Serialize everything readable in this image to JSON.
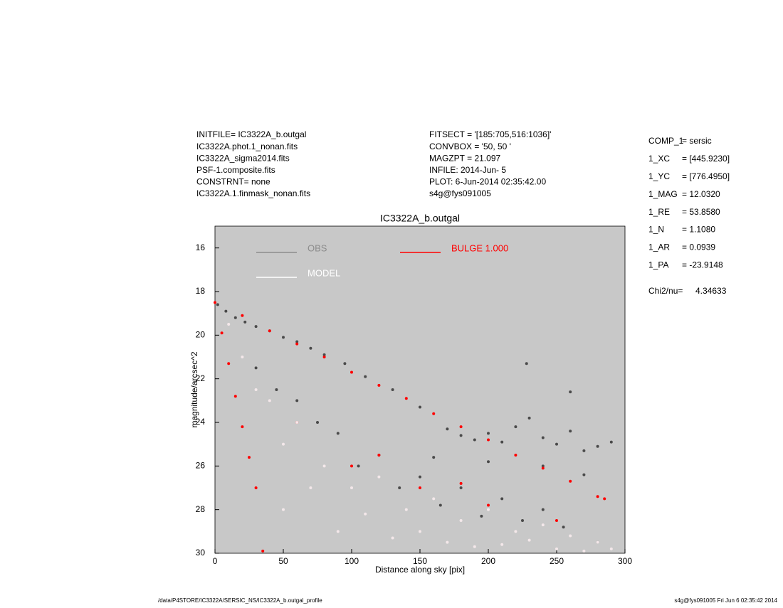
{
  "header": {
    "left": [
      "INITFILE= IC3322A_b.outgal",
      "IC3322A.phot.1_nonan.fits",
      "IC3322A_sigma2014.fits",
      "PSF-1.composite.fits",
      "CONSTRNT= none",
      "IC3322A.1.finmask_nonan.fits"
    ],
    "middle": [
      "FITSECT = '[185:705,516:1036]'",
      "CONVBOX = '50, 50  '",
      "MAGZPT  =              21.097",
      "INFILE: 2014-Jun- 5",
      "PLOT:  6-Jun-2014 02:35:42.00",
      "s4g@fys091005"
    ],
    "params": [
      [
        "COMP_1",
        "= sersic"
      ],
      [
        "1_XC",
        "= [445.9230]"
      ],
      [
        "1_YC",
        "= [776.4950]"
      ],
      [
        "1_MAG",
        "= 12.0320"
      ],
      [
        "1_RE",
        "= 53.8580"
      ],
      [
        "1_N",
        "= 1.1080"
      ],
      [
        "1_AR",
        "= 0.0939"
      ],
      [
        "1_PA",
        "= -23.9148"
      ]
    ],
    "chi2": [
      "Chi2/nu=",
      "4.34633"
    ]
  },
  "footer": {
    "left": "/data/P4STORE/IC3322A/SERSIC_NS/IC3322A_b.outgal_profile",
    "right": "s4g@fys091005  Fri Jun  6 02:35:42 2014"
  },
  "chart_data": {
    "type": "scatter",
    "title": "IC3322A_b.outgal",
    "xlabel": "Distance along sky [pix]",
    "ylabel": "magnitude/arcsec^2",
    "xlim": [
      0,
      300
    ],
    "ylim": [
      30,
      15
    ],
    "xticks": [
      0,
      50,
      100,
      150,
      200,
      250,
      300
    ],
    "yticks": [
      16,
      18,
      20,
      22,
      24,
      26,
      28,
      30
    ],
    "background": "#c8c8c8",
    "series": [
      {
        "name": "OBS",
        "color": "#4a4a4a",
        "legend_color": "#8c8c8c",
        "x": [
          2,
          8,
          15,
          22,
          30,
          40,
          50,
          60,
          70,
          80,
          95,
          110,
          130,
          150,
          170,
          180,
          190,
          200,
          210,
          220,
          230,
          240,
          250,
          260,
          270,
          280,
          290,
          160,
          200,
          240,
          270,
          30,
          60,
          90,
          120,
          150,
          180,
          210,
          240,
          45,
          75,
          105,
          135,
          165,
          195,
          225,
          255,
          280,
          228,
          260
        ],
        "values": [
          18.6,
          18.9,
          19.2,
          19.4,
          19.6,
          19.8,
          20.1,
          20.3,
          20.6,
          20.9,
          21.3,
          21.9,
          22.5,
          23.3,
          24.3,
          24.6,
          24.8,
          24.5,
          24.9,
          24.2,
          23.8,
          24.7,
          25.0,
          24.4,
          25.3,
          25.1,
          24.9,
          25.6,
          25.8,
          26.0,
          26.4,
          21.5,
          23.0,
          24.5,
          25.5,
          26.5,
          27.0,
          27.5,
          28.0,
          22.5,
          24.0,
          26.0,
          27.0,
          27.8,
          28.3,
          28.5,
          28.8,
          29.5,
          21.3,
          22.6
        ]
      },
      {
        "name": "BULGE  1.000",
        "color": "#ff0000",
        "legend_color": "#ff0000",
        "x": [
          0,
          20,
          40,
          60,
          80,
          100,
          120,
          140,
          160,
          180,
          200,
          220,
          240,
          260,
          280,
          285,
          5,
          10,
          15,
          20,
          25,
          30,
          35,
          100,
          150,
          200,
          250,
          60,
          120,
          180
        ],
        "values": [
          18.5,
          19.1,
          19.8,
          20.4,
          21.0,
          21.7,
          22.3,
          22.9,
          23.6,
          24.2,
          24.8,
          25.5,
          26.1,
          26.7,
          27.4,
          27.5,
          19.9,
          21.3,
          22.8,
          24.2,
          25.6,
          27.0,
          29.9,
          26,
          27,
          27.8,
          28.5,
          24,
          25.5,
          26.8
        ]
      },
      {
        "name": "MODEL",
        "color": "#f4e8ea",
        "legend_color": "#ffffff",
        "x": [
          10,
          20,
          30,
          40,
          50,
          60,
          80,
          100,
          120,
          140,
          160,
          180,
          200,
          220,
          240,
          260,
          280,
          290,
          50,
          90,
          130,
          170,
          210,
          250,
          70,
          110,
          150,
          190,
          230,
          270
        ],
        "values": [
          19.5,
          21,
          22.5,
          23,
          25,
          24,
          26,
          27,
          26.5,
          28,
          27.5,
          28.5,
          28,
          29,
          28.7,
          29.2,
          29.5,
          29.8,
          28,
          29,
          29.3,
          29.5,
          29.6,
          29.8,
          27,
          28.2,
          29,
          29.7,
          29.4,
          29.9
        ]
      }
    ]
  }
}
